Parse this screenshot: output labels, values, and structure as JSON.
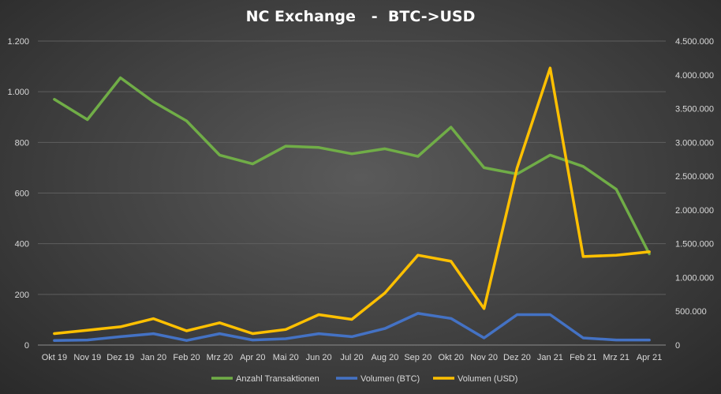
{
  "chart_data": {
    "type": "line",
    "title": "NC Exchange   -  BTC->USD",
    "categories": [
      "Okt 19",
      "Nov 19",
      "Dez 19",
      "Jan 20",
      "Feb 20",
      "Mrz 20",
      "Apr 20",
      "Mai 20",
      "Jun 20",
      "Jul 20",
      "Aug 20",
      "Sep 20",
      "Okt 20",
      "Nov 20",
      "Dez 20",
      "Jan 21",
      "Feb 21",
      "Mrz 21",
      "Apr 21"
    ],
    "y_left": {
      "ylim": [
        0,
        1200
      ],
      "ticks": [
        0,
        200,
        400,
        600,
        800,
        1000,
        1200
      ],
      "tick_labels": [
        "0",
        "200",
        "400",
        "600",
        "800",
        "1.000",
        "1.200"
      ]
    },
    "y_right": {
      "ylim": [
        0,
        4500000
      ],
      "ticks": [
        0,
        500000,
        1000000,
        1500000,
        2000000,
        2500000,
        3000000,
        3500000,
        4000000,
        4500000
      ],
      "tick_labels": [
        "0",
        "500.000",
        "1.000.000",
        "1.500.000",
        "2.000.000",
        "2.500.000",
        "3.000.000",
        "3.500.000",
        "4.000.000",
        "4.500.000"
      ]
    },
    "series": [
      {
        "name": "Anzahl Transaktionen",
        "axis": "left",
        "color": "#70ad47",
        "values": [
          970,
          890,
          1055,
          960,
          885,
          750,
          715,
          785,
          780,
          755,
          775,
          745,
          860,
          700,
          675,
          750,
          705,
          615,
          360
        ]
      },
      {
        "name": "Volumen (BTC)",
        "axis": "left",
        "color": "#4472c4",
        "values": [
          18,
          20,
          33,
          45,
          18,
          45,
          20,
          25,
          45,
          33,
          65,
          125,
          105,
          28,
          120,
          120,
          28,
          20,
          20
        ]
      },
      {
        "name": "Volumen (USD)",
        "axis": "right",
        "color": "#ffc000",
        "values": [
          170000,
          220000,
          270000,
          390000,
          210000,
          330000,
          170000,
          230000,
          450000,
          380000,
          770000,
          1330000,
          1240000,
          540000,
          2620000,
          4100000,
          1310000,
          1330000,
          1380000
        ]
      }
    ],
    "legend_position": "bottom",
    "grid": true
  }
}
